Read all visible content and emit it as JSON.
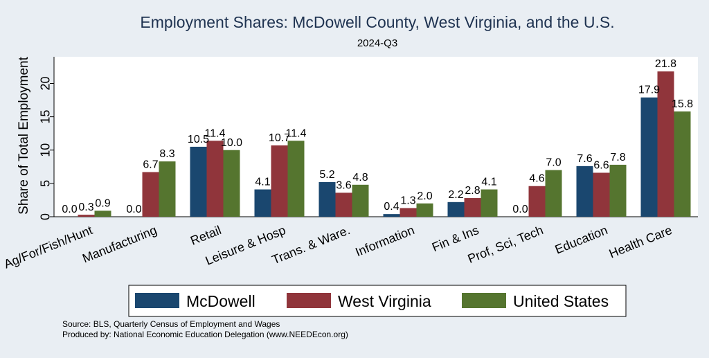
{
  "chart_data": {
    "type": "bar",
    "title": "Employment Shares: McDowell County, West Virginia, and the U.S.",
    "subtitle": "2024-Q3",
    "ylabel": "Share of Total Employment",
    "xlabel": "",
    "ylim": [
      0,
      24
    ],
    "yticks": [
      0,
      5,
      10,
      15,
      20
    ],
    "categories": [
      "Ag/For/Fish/Hunt",
      "Manufacturing",
      "Retail",
      "Leisure & Hosp",
      "Trans. & Ware.",
      "Information",
      "Fin & Ins",
      "Prof, Sci, Tech",
      "Education",
      "Health Care"
    ],
    "series": [
      {
        "name": "McDowell",
        "color": "#1a476f",
        "values": [
          0.0,
          0.0,
          10.5,
          4.1,
          5.2,
          0.4,
          2.2,
          0.0,
          7.6,
          17.9
        ]
      },
      {
        "name": "West Virginia",
        "color": "#90353b",
        "values": [
          0.3,
          6.7,
          11.4,
          10.7,
          3.6,
          1.3,
          2.8,
          4.6,
          6.6,
          21.8
        ]
      },
      {
        "name": "United States",
        "color": "#55752f",
        "values": [
          0.9,
          8.3,
          10.0,
          11.4,
          4.8,
          2.0,
          4.1,
          7.0,
          7.8,
          15.8
        ]
      }
    ],
    "legend_position": "bottom",
    "grid": false,
    "value_labels": true
  },
  "notes": [
    "Source: BLS, Quarterly Census of Employment and Wages",
    "Produced by: National Economic Education Delegation (www.NEEDEcon.org)"
  ],
  "colors": {
    "background": "#e9eef3",
    "plot_background": "#ffffff",
    "title": "#1e3250"
  }
}
